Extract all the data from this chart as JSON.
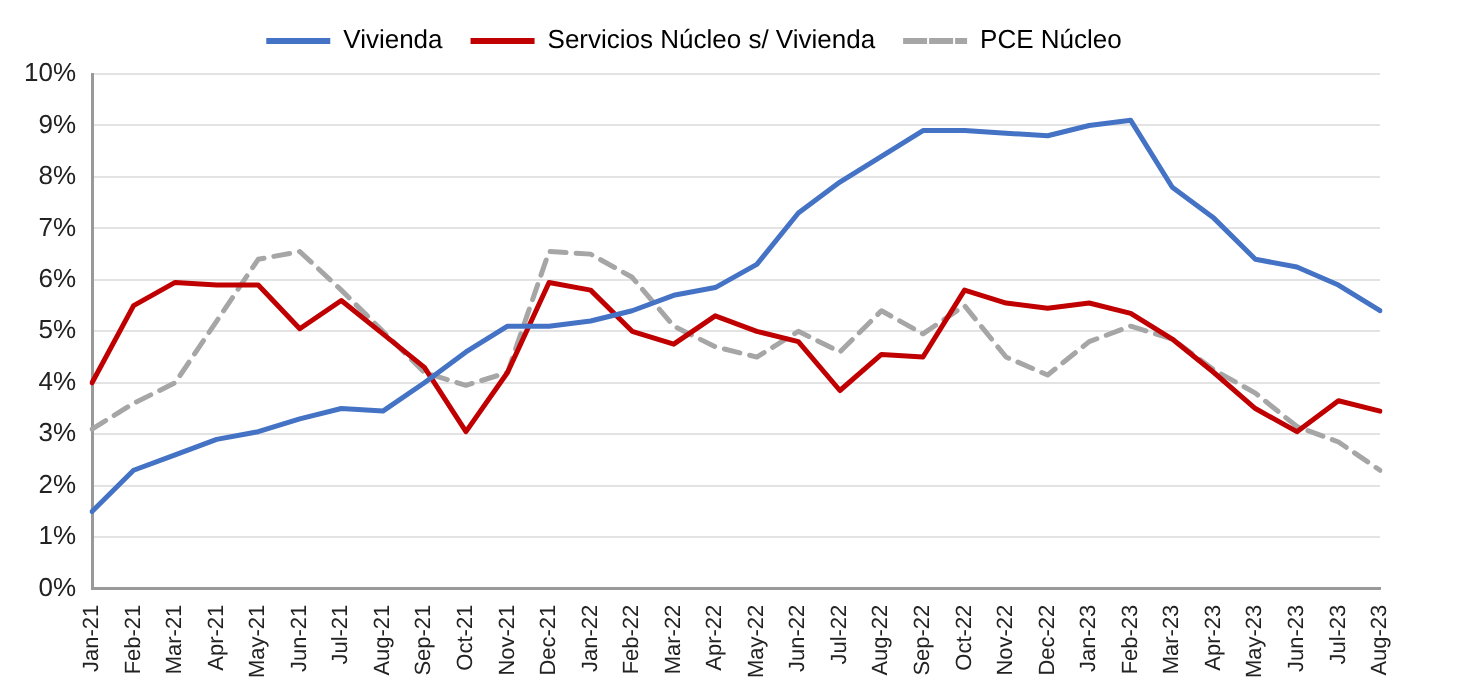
{
  "chart_data": {
    "type": "line",
    "categories": [
      "Jan-21",
      "Feb-21",
      "Mar-21",
      "Apr-21",
      "May-21",
      "Jun-21",
      "Jul-21",
      "Aug-21",
      "Sep-21",
      "Oct-21",
      "Nov-21",
      "Dec-21",
      "Jan-22",
      "Feb-22",
      "Mar-22",
      "Apr-22",
      "May-22",
      "Jun-22",
      "Jul-22",
      "Aug-22",
      "Sep-22",
      "Oct-22",
      "Nov-22",
      "Dec-22",
      "Jan-23",
      "Feb-23",
      "Mar-23",
      "Apr-23",
      "May-23",
      "Jun-23",
      "Jul-23",
      "Aug-23"
    ],
    "series": [
      {
        "name": "Vivienda",
        "color": "#4472c4",
        "line_style": "solid",
        "values": [
          1.5,
          2.3,
          2.6,
          2.9,
          3.05,
          3.3,
          3.5,
          3.45,
          4.0,
          4.6,
          5.1,
          5.1,
          5.2,
          5.4,
          5.7,
          5.85,
          6.3,
          7.3,
          7.9,
          8.4,
          8.9,
          8.9,
          8.85,
          8.8,
          9.0,
          9.1,
          7.8,
          7.2,
          6.4,
          6.25,
          5.9,
          5.4
        ]
      },
      {
        "name": "Servicios Núcleo s/ Vivienda",
        "color": "#c00000",
        "line_style": "solid",
        "values": [
          4.0,
          5.5,
          5.95,
          5.9,
          5.9,
          5.05,
          5.6,
          4.95,
          4.3,
          3.05,
          4.2,
          5.95,
          5.8,
          5.0,
          4.75,
          5.3,
          5.0,
          4.8,
          3.85,
          4.55,
          4.5,
          5.8,
          5.55,
          5.45,
          5.55,
          5.35,
          4.85,
          4.2,
          3.5,
          3.05,
          3.65,
          3.45
        ]
      },
      {
        "name": "PCE Núcleo",
        "color": "#a6a6a6",
        "line_style": "dashed",
        "values": [
          3.1,
          3.6,
          4.0,
          5.2,
          6.4,
          6.55,
          5.8,
          5.0,
          4.2,
          3.95,
          4.2,
          6.55,
          6.5,
          6.05,
          5.1,
          4.7,
          4.5,
          5.0,
          4.6,
          5.4,
          4.95,
          5.5,
          4.5,
          4.15,
          4.8,
          5.1,
          4.85,
          4.25,
          3.8,
          3.15,
          2.85,
          2.3
        ]
      }
    ],
    "ylim": [
      0,
      10
    ],
    "yticks": [
      {
        "value": 0,
        "label": "0%"
      },
      {
        "value": 1,
        "label": "1%"
      },
      {
        "value": 2,
        "label": "2%"
      },
      {
        "value": 3,
        "label": "3%"
      },
      {
        "value": 4,
        "label": "4%"
      },
      {
        "value": 5,
        "label": "5%"
      },
      {
        "value": 6,
        "label": "6%"
      },
      {
        "value": 7,
        "label": "7%"
      },
      {
        "value": 8,
        "label": "8%"
      },
      {
        "value": 9,
        "label": "9%"
      },
      {
        "value": 10,
        "label": "10%"
      }
    ],
    "grid": "y",
    "legend": "top",
    "marker": "none"
  }
}
